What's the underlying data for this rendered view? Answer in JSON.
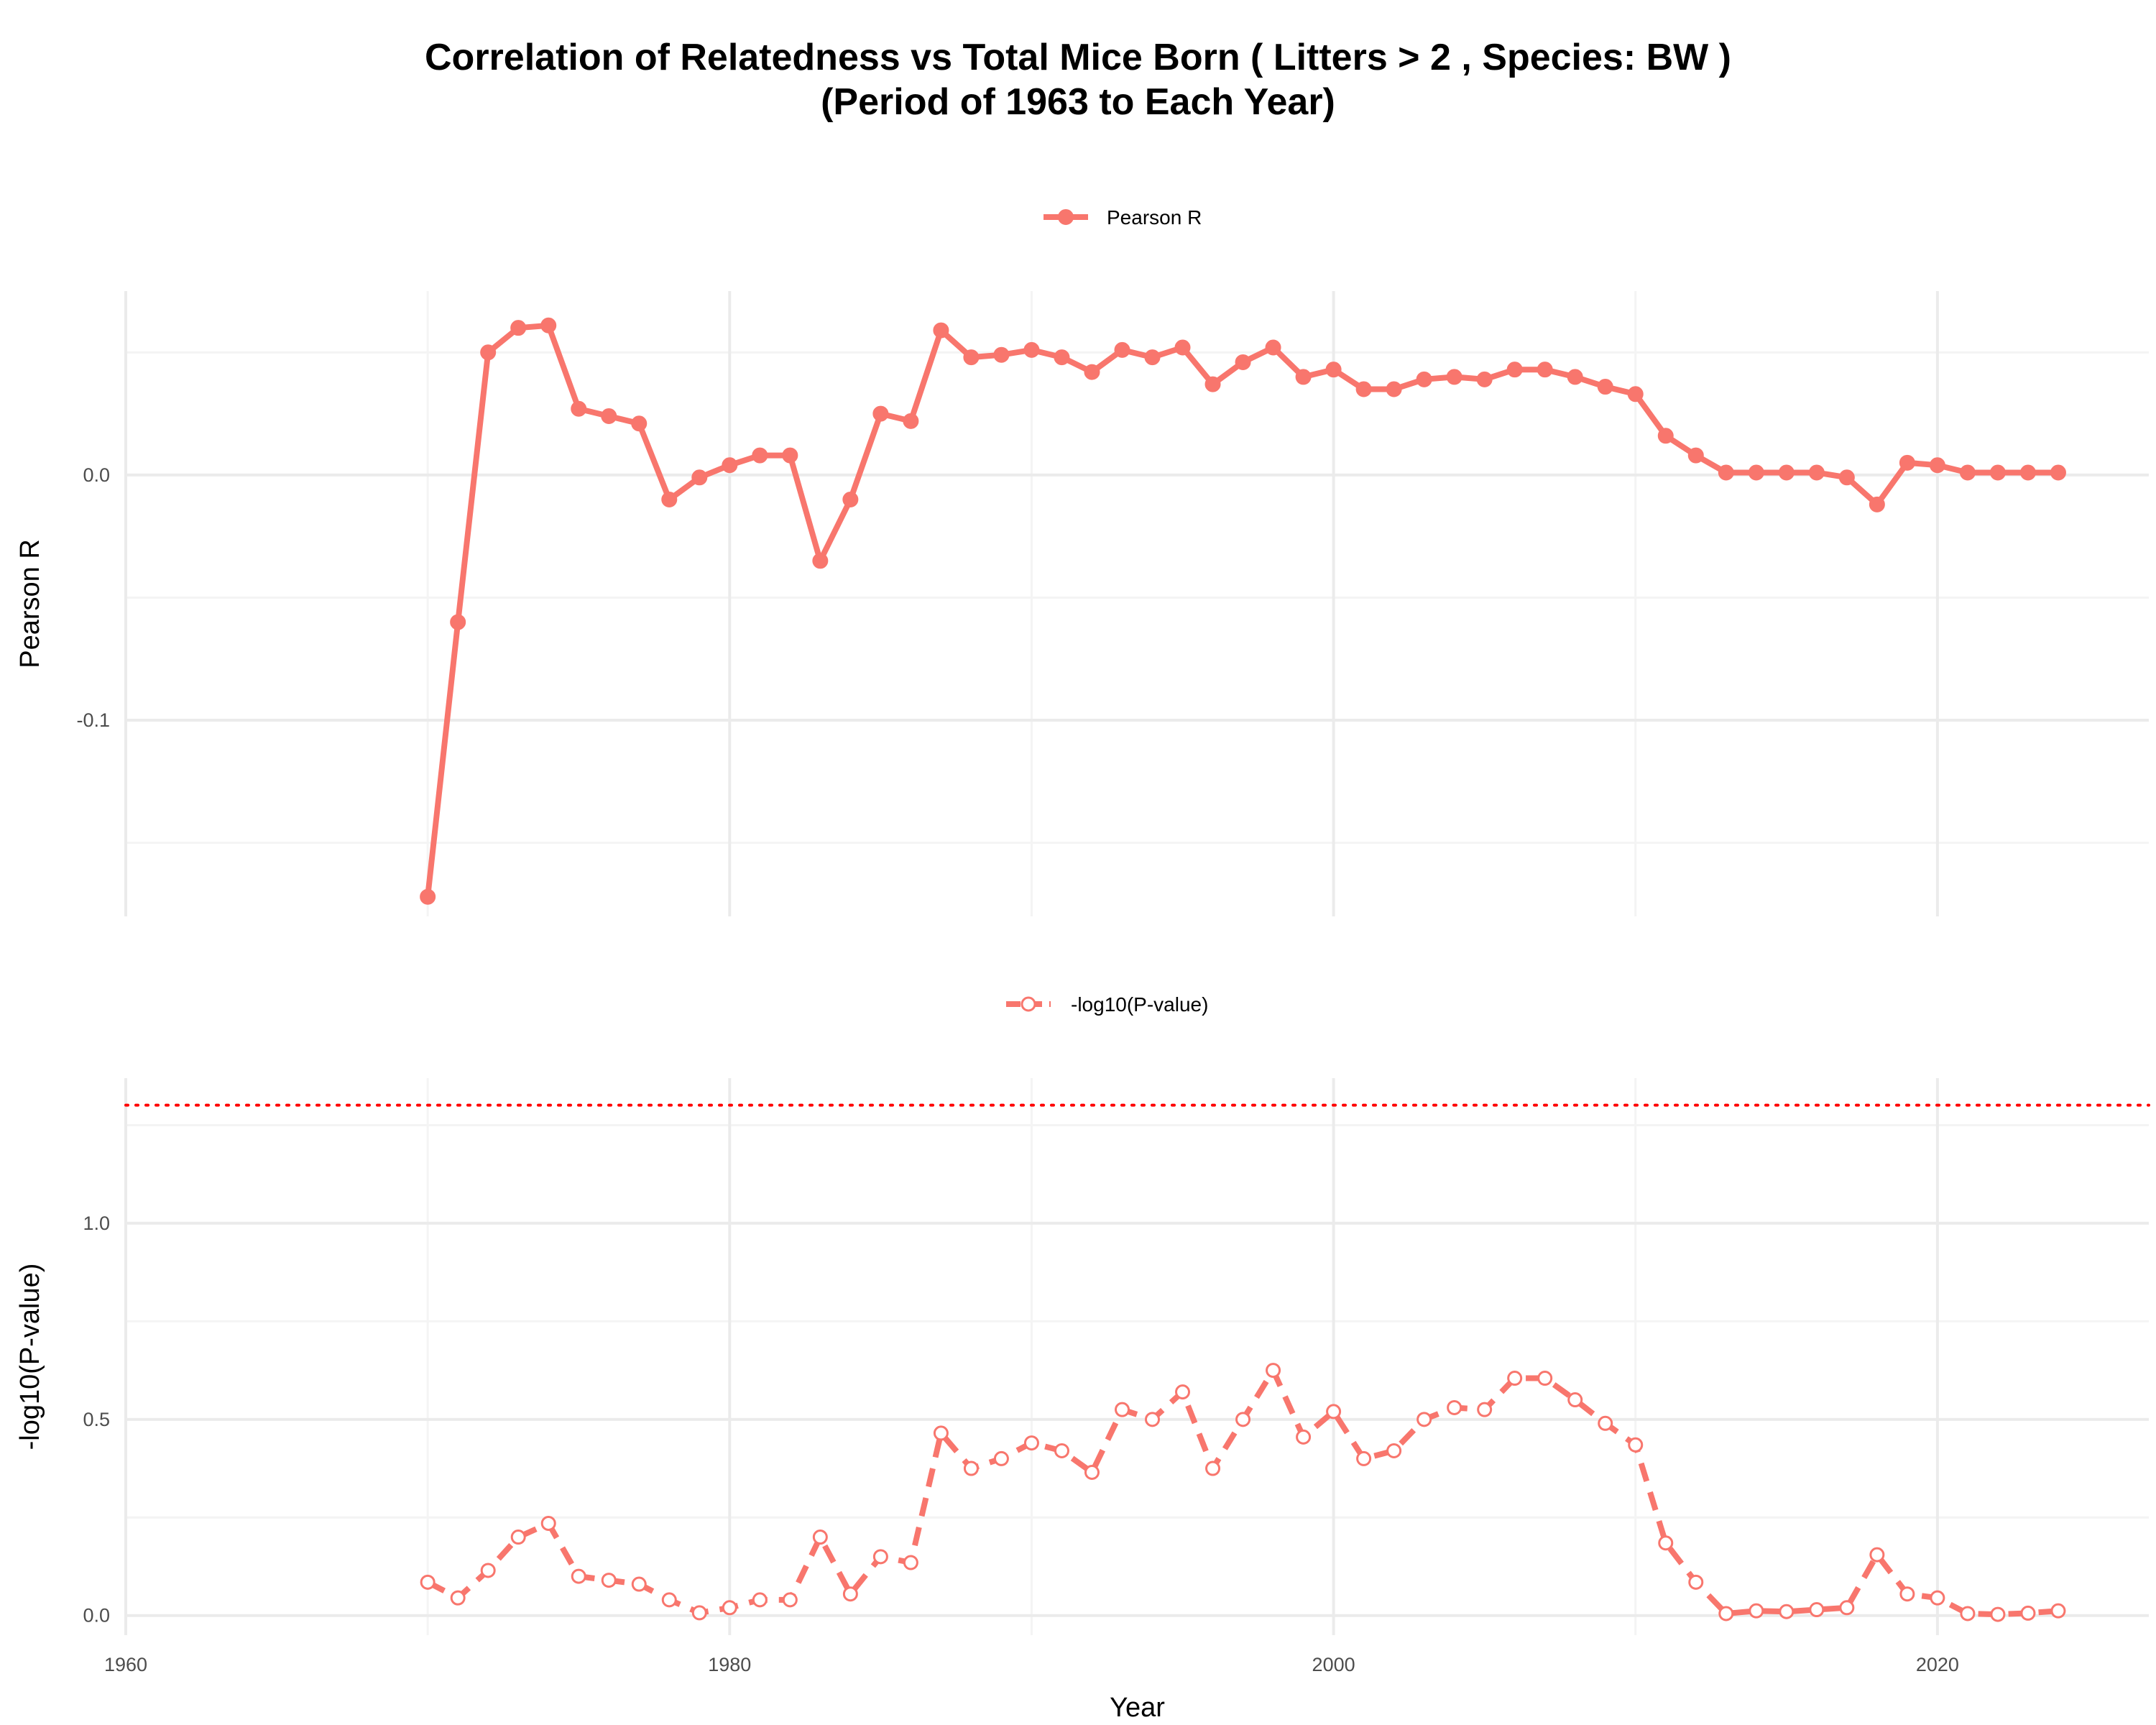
{
  "title": {
    "line1": "Correlation of Relatedness vs Total Mice Born ( Litters > 2 , Species: BW )",
    "line2": "(Period of 1963 to Each Year)"
  },
  "colors": {
    "series": "#F8766D",
    "threshold": "#FF0000",
    "grid_major": "#EBEBEB",
    "grid_minor": "#F4F4F4"
  },
  "chart_data": [
    {
      "type": "line",
      "legend": "Pearson R",
      "legend_position": "top",
      "ylabel": "Pearson R",
      "xlabel": "",
      "xlim": [
        1960,
        2027
      ],
      "ylim": [
        -0.18,
        0.075
      ],
      "x_ticks": [
        1960,
        1980,
        2000,
        2020
      ],
      "y_ticks": [
        0.0,
        -0.1
      ],
      "y_tick_labels": [
        "0.0",
        "-0.1"
      ],
      "marker": "filled-circle",
      "line_style": "solid",
      "series": [
        {
          "name": "Pearson R",
          "x": [
            1970,
            1971,
            1972,
            1973,
            1974,
            1975,
            1976,
            1977,
            1978,
            1979,
            1980,
            1981,
            1982,
            1983,
            1984,
            1985,
            1986,
            1987,
            1988,
            1989,
            1990,
            1991,
            1992,
            1993,
            1994,
            1995,
            1996,
            1997,
            1998,
            1999,
            2000,
            2001,
            2002,
            2003,
            2004,
            2005,
            2006,
            2007,
            2008,
            2009,
            2010,
            2011,
            2012,
            2013,
            2014,
            2015,
            2016,
            2017,
            2018,
            2019,
            2020,
            2021,
            2022,
            2023,
            2024
          ],
          "y": [
            -0.172,
            -0.06,
            0.05,
            0.06,
            0.061,
            0.027,
            0.024,
            0.021,
            -0.01,
            -0.001,
            0.004,
            0.008,
            0.008,
            -0.035,
            -0.01,
            0.025,
            0.022,
            0.059,
            0.048,
            0.049,
            0.051,
            0.048,
            0.042,
            0.051,
            0.048,
            0.052,
            0.037,
            0.046,
            0.052,
            0.04,
            0.043,
            0.035,
            0.035,
            0.039,
            0.04,
            0.039,
            0.043,
            0.043,
            0.04,
            0.036,
            0.033,
            0.016,
            0.008,
            0.001,
            0.001,
            0.001,
            0.001,
            -0.001,
            -0.012,
            0.005,
            0.004,
            0.001,
            0.001,
            0.001,
            0.001
          ]
        }
      ]
    },
    {
      "type": "line",
      "legend": "-log10(P-value)",
      "legend_position": "top",
      "ylabel": "-log10(P-value)",
      "xlabel": "Year",
      "xlim": [
        1960,
        2027
      ],
      "ylim": [
        -0.05,
        1.37
      ],
      "x_ticks": [
        1960,
        1980,
        2000,
        2020
      ],
      "x_tick_labels": [
        "1960",
        "1980",
        "2000",
        "2020"
      ],
      "y_ticks": [
        0.0,
        0.5,
        1.0
      ],
      "y_tick_labels": [
        "0.0",
        "0.5",
        "1.0"
      ],
      "marker": "open-circle",
      "line_style": "dashed",
      "threshold_line": {
        "y": 1.30103,
        "style": "dotted"
      },
      "series": [
        {
          "name": "-log10(P-value)",
          "x": [
            1970,
            1971,
            1972,
            1973,
            1974,
            1975,
            1976,
            1977,
            1978,
            1979,
            1980,
            1981,
            1982,
            1983,
            1984,
            1985,
            1986,
            1987,
            1988,
            1989,
            1990,
            1991,
            1992,
            1993,
            1994,
            1995,
            1996,
            1997,
            1998,
            1999,
            2000,
            2001,
            2002,
            2003,
            2004,
            2005,
            2006,
            2007,
            2008,
            2009,
            2010,
            2011,
            2012,
            2013,
            2014,
            2015,
            2016,
            2017,
            2018,
            2019,
            2020,
            2021,
            2022,
            2023,
            2024
          ],
          "y": [
            0.085,
            0.045,
            0.115,
            0.2,
            0.235,
            0.1,
            0.09,
            0.08,
            0.04,
            0.007,
            0.02,
            0.04,
            0.04,
            0.2,
            0.055,
            0.15,
            0.135,
            0.465,
            0.375,
            0.4,
            0.44,
            0.42,
            0.365,
            0.525,
            0.5,
            0.57,
            0.375,
            0.5,
            0.625,
            0.455,
            0.52,
            0.4,
            0.42,
            0.5,
            0.53,
            0.525,
            0.605,
            0.605,
            0.55,
            0.49,
            0.435,
            0.185,
            0.085,
            0.005,
            0.012,
            0.01,
            0.015,
            0.02,
            0.155,
            0.055,
            0.045,
            0.005,
            0.003,
            0.006,
            0.012
          ]
        }
      ]
    }
  ]
}
